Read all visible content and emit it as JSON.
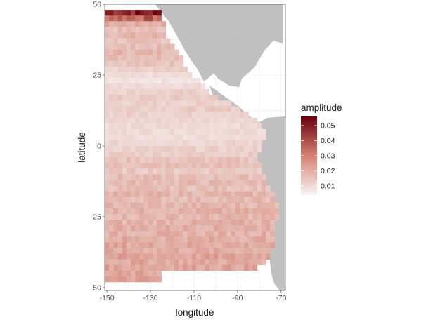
{
  "chart_data": {
    "type": "heatmap",
    "title": "",
    "xlabel": "longitude",
    "ylabel": "latitude",
    "xlim": [
      -151,
      -68
    ],
    "ylim": [
      -51,
      50
    ],
    "x_ticks": [
      -150,
      -130,
      -110,
      -90,
      -70
    ],
    "x_tick_labels": [
      "-150",
      "-130",
      "-110",
      "-90",
      "-70"
    ],
    "y_ticks": [
      -50,
      -25,
      0,
      25,
      50
    ],
    "y_tick_labels": [
      "-50",
      "-25",
      "0",
      "25",
      "50"
    ],
    "grid": true,
    "land_color": "#c0c0c0",
    "legend": {
      "title": "amplitude",
      "placement": "right",
      "ticks": [
        0.01,
        0.02,
        0.03,
        0.04,
        0.05
      ],
      "tick_labels": [
        "0.01",
        "0.02",
        "0.03",
        "0.04",
        "0.05"
      ],
      "range": [
        0.004,
        0.056
      ],
      "colors": [
        "#f7f4f4",
        "#d48272",
        "#67000d"
      ]
    },
    "cell_size_deg": 2,
    "rows": [
      {
        "lat": 47,
        "lon_start": -150,
        "lon_end": -126,
        "value": 0.05
      },
      {
        "lat": 45,
        "lon_start": -150,
        "lon_end": -126,
        "value": 0.036
      },
      {
        "lat": 43,
        "lon_start": -150,
        "lon_end": -124,
        "value": 0.02
      },
      {
        "lat": 41,
        "lon_start": -150,
        "lon_end": -124,
        "value": 0.016
      },
      {
        "lat": 39,
        "lon_start": -150,
        "lon_end": -124,
        "value": 0.018
      },
      {
        "lat": 37,
        "lon_start": -150,
        "lon_end": -122,
        "value": 0.015
      },
      {
        "lat": 35,
        "lon_start": -150,
        "lon_end": -120,
        "value": 0.016
      },
      {
        "lat": 33,
        "lon_start": -150,
        "lon_end": -118,
        "value": 0.018
      },
      {
        "lat": 31,
        "lon_start": -150,
        "lon_end": -116,
        "value": 0.017
      },
      {
        "lat": 29,
        "lon_start": -150,
        "lon_end": -115,
        "value": 0.015
      },
      {
        "lat": 27,
        "lon_start": -150,
        "lon_end": -114,
        "value": 0.012
      },
      {
        "lat": 25,
        "lon_start": -150,
        "lon_end": -112,
        "value": 0.009
      },
      {
        "lat": 23,
        "lon_start": -150,
        "lon_end": -108,
        "value": 0.008
      },
      {
        "lat": 21,
        "lon_start": -150,
        "lon_end": -105,
        "value": 0.01
      },
      {
        "lat": 19,
        "lon_start": -150,
        "lon_end": -104,
        "value": 0.012
      },
      {
        "lat": 17,
        "lon_start": -150,
        "lon_end": -100,
        "value": 0.013
      },
      {
        "lat": 15,
        "lon_start": -150,
        "lon_end": -94,
        "value": 0.012
      },
      {
        "lat": 13,
        "lon_start": -150,
        "lon_end": -90,
        "value": 0.013
      },
      {
        "lat": 11,
        "lon_start": -150,
        "lon_end": -86,
        "value": 0.012
      },
      {
        "lat": 9,
        "lon_start": -150,
        "lon_end": -82,
        "value": 0.011
      },
      {
        "lat": 7,
        "lon_start": -150,
        "lon_end": -80,
        "value": 0.01
      },
      {
        "lat": 5,
        "lon_start": -150,
        "lon_end": -78,
        "value": 0.01
      },
      {
        "lat": 3,
        "lon_start": -150,
        "lon_end": -78,
        "value": 0.009
      },
      {
        "lat": 1,
        "lon_start": -150,
        "lon_end": -80,
        "value": 0.011
      },
      {
        "lat": -1,
        "lon_start": -150,
        "lon_end": -80,
        "value": 0.012
      },
      {
        "lat": -3,
        "lon_start": -150,
        "lon_end": -82,
        "value": 0.013
      },
      {
        "lat": -5,
        "lon_start": -150,
        "lon_end": -82,
        "value": 0.015
      },
      {
        "lat": -7,
        "lon_start": -150,
        "lon_end": -80,
        "value": 0.016
      },
      {
        "lat": -9,
        "lon_start": -150,
        "lon_end": -80,
        "value": 0.014
      },
      {
        "lat": -11,
        "lon_start": -150,
        "lon_end": -78,
        "value": 0.016
      },
      {
        "lat": -13,
        "lon_start": -150,
        "lon_end": -77,
        "value": 0.017
      },
      {
        "lat": -15,
        "lon_start": -150,
        "lon_end": -76,
        "value": 0.016
      },
      {
        "lat": -17,
        "lon_start": -150,
        "lon_end": -74,
        "value": 0.018
      },
      {
        "lat": -19,
        "lon_start": -150,
        "lon_end": -73,
        "value": 0.017
      },
      {
        "lat": -21,
        "lon_start": -150,
        "lon_end": -72,
        "value": 0.018
      },
      {
        "lat": -23,
        "lon_start": -150,
        "lon_end": -72,
        "value": 0.019
      },
      {
        "lat": -25,
        "lon_start": -150,
        "lon_end": -72,
        "value": 0.018
      },
      {
        "lat": -27,
        "lon_start": -150,
        "lon_end": -73,
        "value": 0.019
      },
      {
        "lat": -29,
        "lon_start": -150,
        "lon_end": -74,
        "value": 0.02
      },
      {
        "lat": -31,
        "lon_start": -150,
        "lon_end": -74,
        "value": 0.019
      },
      {
        "lat": -33,
        "lon_start": -150,
        "lon_end": -74,
        "value": 0.02
      },
      {
        "lat": -35,
        "lon_start": -150,
        "lon_end": -74,
        "value": 0.021
      },
      {
        "lat": -37,
        "lon_start": -150,
        "lon_end": -76,
        "value": 0.02
      },
      {
        "lat": -39,
        "lon_start": -150,
        "lon_end": -76,
        "value": 0.022
      },
      {
        "lat": -41,
        "lon_start": -150,
        "lon_end": -78,
        "value": 0.021
      },
      {
        "lat": -43,
        "lon_start": -150,
        "lon_end": -82,
        "value": 0.022
      },
      {
        "lat": -45,
        "lon_start": -150,
        "lon_end": -126,
        "value": 0.021
      },
      {
        "lat": -47,
        "lon_start": -150,
        "lon_end": -126,
        "value": 0.022
      }
    ]
  }
}
